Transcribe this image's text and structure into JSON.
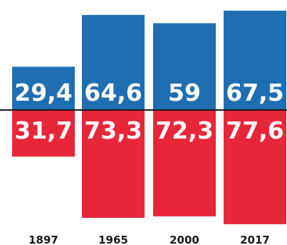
{
  "chart_data": {
    "type": "bar",
    "orientation": "diverging-vertical",
    "title": "",
    "xlabel": "",
    "ylabel": "",
    "categories": [
      "1897",
      "1965",
      "2000",
      "2017"
    ],
    "series": [
      {
        "color": "#1f6eb2",
        "direction": "up",
        "values": [
          29.4,
          64.6,
          59,
          67.5
        ],
        "labels": [
          "29,4",
          "64,6",
          "59",
          "67,5"
        ]
      },
      {
        "color": "#e8263a",
        "direction": "down",
        "values": [
          31.7,
          73.3,
          72.3,
          77.6
        ],
        "labels": [
          "31,7",
          "73,3",
          "72,3",
          "77,6"
        ]
      }
    ],
    "grid": false,
    "legend": "none",
    "baseline_color": "#1a1a1a"
  }
}
